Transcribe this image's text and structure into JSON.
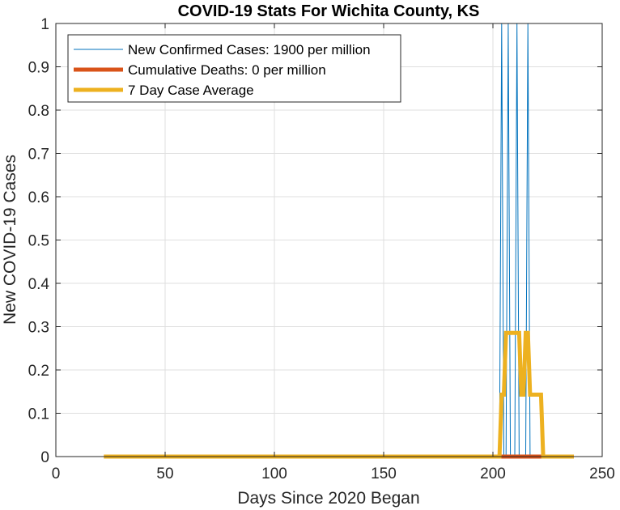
{
  "chart_data": {
    "type": "line",
    "title": "COVID-19 Stats For Wichita County, KS",
    "xlabel": "Days Since 2020 Began",
    "ylabel": "New COVID-19 Cases",
    "xlim": [
      0,
      250
    ],
    "ylim": [
      0,
      1
    ],
    "xticks": [
      0,
      50,
      100,
      150,
      200,
      250
    ],
    "xtick_labels": [
      "0",
      "50",
      "100",
      "150",
      "200",
      "250"
    ],
    "yticks": [
      0,
      0.1,
      0.2,
      0.3,
      0.4,
      0.5,
      0.6,
      0.7,
      0.8,
      0.9,
      1
    ],
    "ytick_labels": [
      "0",
      "0.1",
      "0.2",
      "0.3",
      "0.4",
      "0.5",
      "0.6",
      "0.7",
      "0.8",
      "0.9",
      "1"
    ],
    "grid": true,
    "legend_position": "top-left",
    "series": [
      {
        "name": "New Confirmed Cases: 1900 per million",
        "color": "#0072BD",
        "x": [
          22,
          203,
          204,
          205,
          206,
          207,
          208,
          209,
          210,
          211,
          212,
          215,
          216,
          217,
          237
        ],
        "y": [
          0,
          0,
          1,
          0,
          0,
          1,
          0,
          0,
          0,
          1,
          0,
          0,
          1,
          0,
          0
        ]
      },
      {
        "name": "Cumulative Deaths: 0 per million",
        "color": "#D95319",
        "x": [
          22,
          237
        ],
        "y": [
          0,
          0
        ]
      },
      {
        "name": "7 Day Case Average",
        "color": "#EDB120",
        "x": [
          22,
          203,
          204,
          205,
          206,
          207,
          208,
          209,
          210,
          211,
          212,
          213,
          214,
          215,
          216,
          217,
          218,
          219,
          220,
          221,
          222,
          223,
          237
        ],
        "y": [
          0,
          0,
          0.1429,
          0.1429,
          0.2857,
          0.2857,
          0.2857,
          0.2857,
          0.2857,
          0.2857,
          0.2857,
          0.1429,
          0.1429,
          0.2857,
          0.2857,
          0.1429,
          0.1429,
          0.1429,
          0.1429,
          0.1429,
          0.1429,
          0,
          0
        ]
      }
    ]
  }
}
